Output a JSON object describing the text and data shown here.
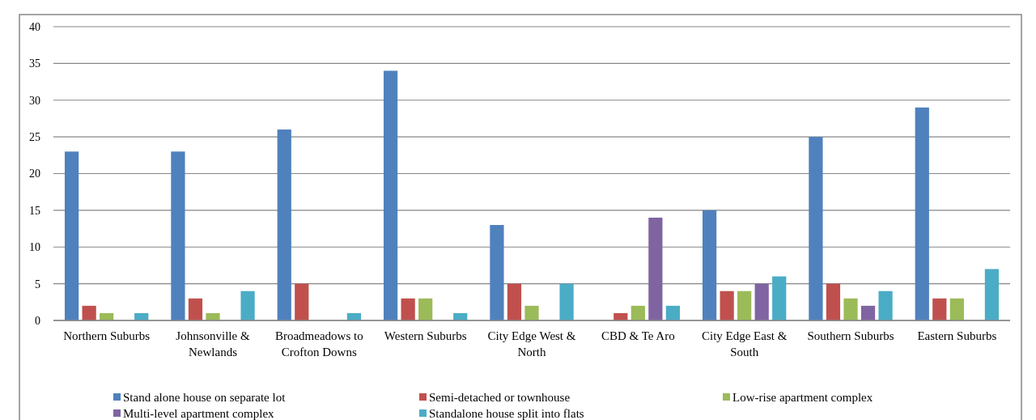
{
  "chart_data": {
    "type": "bar",
    "categories": [
      "Northern Suburbs",
      "Johnsonville & Newlands",
      "Broadmeadows to Crofton Downs",
      "Western Suburbs",
      "City Edge West & North",
      "CBD & Te Aro",
      "City Edge East & South",
      "Southern Suburbs",
      "Eastern Suburbs"
    ],
    "series": [
      {
        "name": "Stand alone house on separate lot",
        "color": "#4f81bd",
        "values": [
          23,
          23,
          26,
          34,
          13,
          0,
          15,
          25,
          29
        ]
      },
      {
        "name": "Semi-detached or townhouse",
        "color": "#c0504d",
        "values": [
          2,
          3,
          5,
          3,
          5,
          1,
          4,
          5,
          3
        ]
      },
      {
        "name": "Low-rise apartment complex",
        "color": "#9bbb59",
        "values": [
          1,
          1,
          0,
          3,
          2,
          2,
          4,
          3,
          3
        ]
      },
      {
        "name": "Multi-level apartment complex",
        "color": "#8064a2",
        "values": [
          0,
          0,
          0,
          0,
          0,
          14,
          5,
          2,
          0
        ]
      },
      {
        "name": "Standalone house split into flats",
        "color": "#4bacc6",
        "values": [
          1,
          4,
          1,
          1,
          5,
          2,
          6,
          4,
          7
        ]
      }
    ],
    "ylim": [
      0,
      40
    ],
    "yticks": [
      0,
      5,
      10,
      15,
      20,
      25,
      30,
      35,
      40
    ],
    "grid": "y",
    "legend": "bottom"
  }
}
